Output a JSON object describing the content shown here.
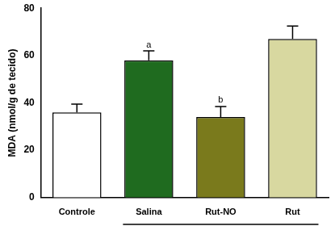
{
  "chart_data": {
    "type": "bar",
    "y_label": "MDA (nmol/g de tecido)",
    "categories": [
      "Controle",
      "Salina",
      "Rut-NO",
      "Rut"
    ],
    "values": [
      36,
      58,
      34,
      67
    ],
    "errors": [
      3.5,
      4,
      4.5,
      5.5
    ],
    "colors": [
      "#ffffff",
      "#1f6b1f",
      "#7a7a1c",
      "#d8d8a0"
    ],
    "annotations": [
      {
        "category": "Salina",
        "text": "a"
      },
      {
        "category": "Rut-NO",
        "text": "b"
      }
    ],
    "ylim": [
      0,
      80
    ],
    "yticks": [
      0,
      20,
      40,
      60,
      80
    ],
    "grid": false
  }
}
